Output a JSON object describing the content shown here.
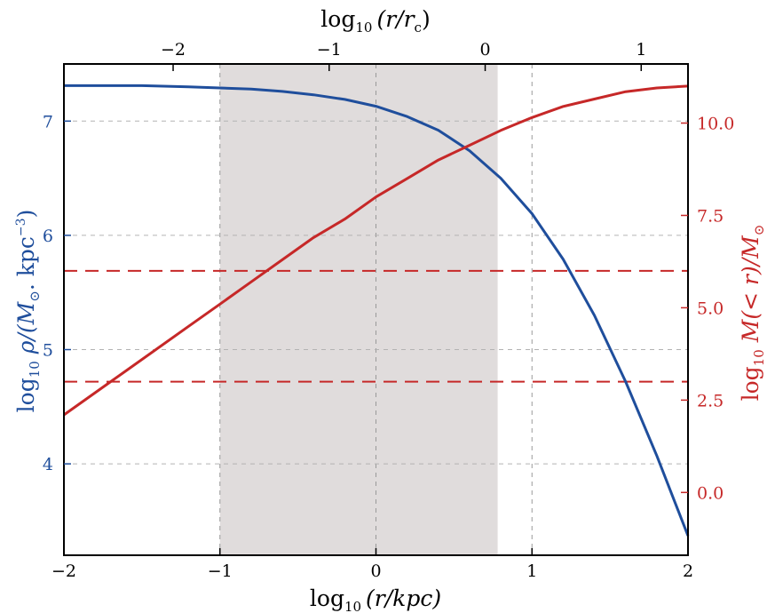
{
  "chart_data": {
    "type": "line",
    "colors": {
      "density": "#1f4e9c",
      "mass": "#c62828",
      "shade": "#e0dcdc",
      "grid": "#b3b3b3"
    },
    "x_bottom": {
      "lim": [
        -2,
        2
      ],
      "ticks": [
        -2,
        -1,
        0,
        1,
        2
      ],
      "tick_labels": [
        "−2",
        "−1",
        "0",
        "1",
        "2"
      ]
    },
    "x_top": {
      "lim": [
        -2.7,
        1.3
      ],
      "ticks": [
        -2,
        -1,
        0,
        1
      ],
      "tick_labels": [
        "−2",
        "−1",
        "0",
        "1"
      ]
    },
    "y_left": {
      "lim": [
        3.2,
        7.5
      ],
      "ticks": [
        4,
        5,
        6,
        7
      ],
      "tick_labels": [
        "4",
        "5",
        "6",
        "7"
      ]
    },
    "y_right": {
      "lim": [
        -1.7,
        11.6
      ],
      "ticks": [
        0.0,
        2.5,
        5.0,
        7.5,
        10.0
      ],
      "tick_labels": [
        "0.0",
        "2.5",
        "5.0",
        "7.5",
        "10.0"
      ]
    },
    "x_labels": {
      "bottom": {
        "prefix": "log",
        "sub": "10",
        "expr": "(r/kpc)"
      },
      "top": {
        "prefix": "log",
        "sub": "10",
        "expr": "(r/r",
        "expr_sub": "c",
        "expr_tail": ")"
      }
    },
    "y_labels": {
      "left": {
        "prefix": "log",
        "sub": "10",
        "expr": "ρ/(M",
        "sun": "⊙",
        "mid": ". kpc",
        "sup": "−3",
        "tail": ")"
      },
      "right": {
        "prefix": "log",
        "sub": "10",
        "expr": "M(< r)/M",
        "sun": "⊙"
      }
    },
    "shaded_region": {
      "x": [
        -1.0,
        0.78
      ]
    },
    "vertical_gridlines_x": [
      -1.0,
      0.0,
      1.0
    ],
    "horizontal_gridlines_yleft": [
      4,
      5,
      6,
      7
    ],
    "reference_lines_yright": [
      3.0,
      6.0
    ],
    "series": [
      {
        "axis": "left",
        "x": [
          -2.0,
          -1.5,
          -1.2,
          -1.0,
          -0.8,
          -0.6,
          -0.4,
          -0.2,
          0.0,
          0.2,
          0.4,
          0.6,
          0.8,
          1.0,
          1.2,
          1.4,
          1.6,
          1.8,
          2.0
        ],
        "y": [
          7.31,
          7.31,
          7.3,
          7.29,
          7.28,
          7.26,
          7.23,
          7.19,
          7.13,
          7.04,
          6.92,
          6.74,
          6.5,
          6.19,
          5.79,
          5.3,
          4.72,
          4.07,
          3.37
        ]
      },
      {
        "axis": "right",
        "x": [
          -2.0,
          -1.6,
          -1.2,
          -1.0,
          -0.8,
          -0.6,
          -0.4,
          -0.2,
          0.0,
          0.2,
          0.4,
          0.6,
          0.8,
          1.0,
          1.2,
          1.4,
          1.6,
          1.8,
          2.0
        ],
        "y": [
          2.1,
          3.3,
          4.5,
          5.1,
          5.7,
          6.3,
          6.9,
          7.4,
          8.0,
          8.5,
          9.0,
          9.4,
          9.8,
          10.15,
          10.45,
          10.65,
          10.85,
          10.95,
          11.0
        ]
      }
    ]
  }
}
